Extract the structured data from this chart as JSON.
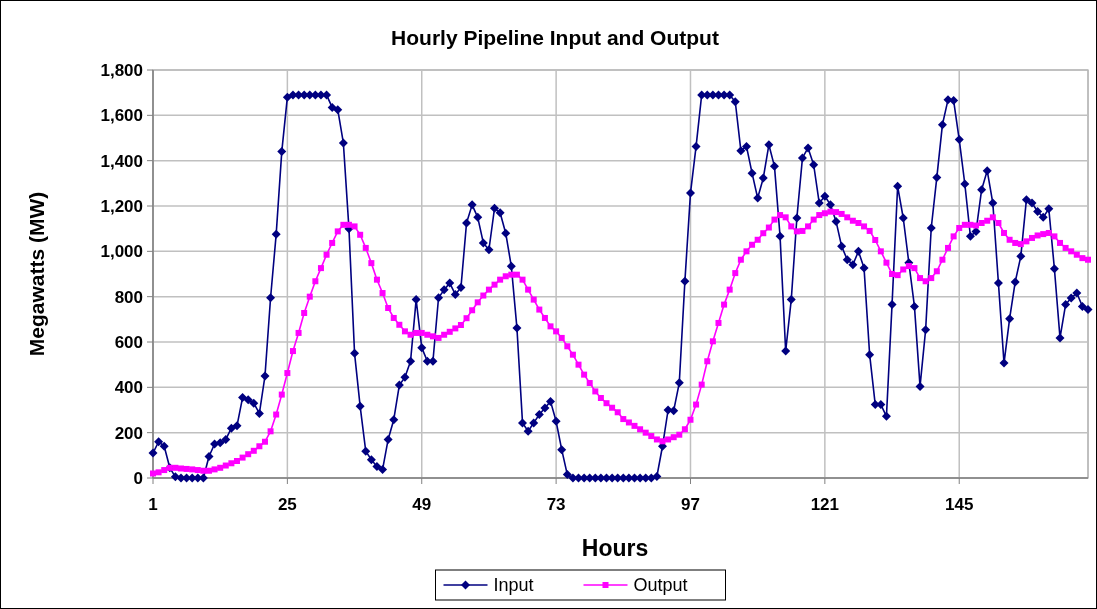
{
  "chart_data": {
    "type": "line",
    "title": "Hourly Pipeline Input and Output",
    "xlabel": "Hours",
    "ylabel": "Megawatts (MW)",
    "x": [
      1,
      2,
      3,
      4,
      5,
      6,
      7,
      8,
      9,
      10,
      11,
      12,
      13,
      14,
      15,
      16,
      17,
      18,
      19,
      20,
      21,
      22,
      23,
      24,
      25,
      26,
      27,
      28,
      29,
      30,
      31,
      32,
      33,
      34,
      35,
      36,
      37,
      38,
      39,
      40,
      41,
      42,
      43,
      44,
      45,
      46,
      47,
      48,
      49,
      50,
      51,
      52,
      53,
      54,
      55,
      56,
      57,
      58,
      59,
      60,
      61,
      62,
      63,
      64,
      65,
      66,
      67,
      68,
      69,
      70,
      71,
      72,
      73,
      74,
      75,
      76,
      77,
      78,
      79,
      80,
      81,
      82,
      83,
      84,
      85,
      86,
      87,
      88,
      89,
      90,
      91,
      92,
      93,
      94,
      95,
      96,
      97,
      98,
      99,
      100,
      101,
      102,
      103,
      104,
      105,
      106,
      107,
      108,
      109,
      110,
      111,
      112,
      113,
      114,
      115,
      116,
      117,
      118,
      119,
      120,
      121,
      122,
      123,
      124,
      125,
      126,
      127,
      128,
      129,
      130,
      131,
      132,
      133,
      134,
      135,
      136,
      137,
      138,
      139,
      140,
      141,
      142,
      143,
      144,
      145,
      146,
      147,
      148,
      149,
      150,
      151,
      152,
      153,
      154,
      155,
      156,
      157,
      158,
      159,
      160,
      161,
      162,
      163,
      164,
      165,
      166,
      167,
      168
    ],
    "series": [
      {
        "name": "Input",
        "color": "#000080",
        "marker": "diamond",
        "values": [
          110,
          160,
          140,
          45,
          5,
          0,
          0,
          0,
          0,
          0,
          95,
          150,
          155,
          170,
          220,
          230,
          355,
          345,
          330,
          285,
          450,
          795,
          1075,
          1440,
          1680,
          1690,
          1690,
          1690,
          1690,
          1690,
          1690,
          1690,
          1635,
          1625,
          1478,
          1100,
          550,
          316,
          118,
          81,
          51,
          37,
          170,
          257,
          410,
          444,
          515,
          787,
          575,
          515,
          515,
          795,
          830,
          860,
          810,
          840,
          1125,
          1205,
          1150,
          1037,
          1007,
          1190,
          1170,
          1080,
          934,
          662,
          243,
          206,
          243,
          280,
          309,
          338,
          250,
          125,
          15,
          0,
          0,
          0,
          0,
          0,
          0,
          0,
          0,
          0,
          0,
          0,
          0,
          0,
          0,
          0,
          7,
          140,
          300,
          297,
          420,
          868,
          1257,
          1463,
          1690,
          1690,
          1690,
          1690,
          1690,
          1690,
          1660,
          1444,
          1463,
          1345,
          1235,
          1323,
          1470,
          1375,
          1066,
          560,
          787,
          1147,
          1412,
          1456,
          1382,
          1213,
          1243,
          1206,
          1132,
          1022,
          963,
          941,
          1000,
          926,
          544,
          324,
          324,
          272,
          765,
          1287,
          1147,
          950,
          757,
          404,
          654,
          1103,
          1326,
          1559,
          1669,
          1665,
          1493,
          1297,
          1066,
          1088,
          1272,
          1356,
          1213,
          860,
          507,
          703,
          865,
          978,
          1228,
          1213,
          1176,
          1150,
          1188,
          923,
          618,
          765,
          794,
          816,
          757,
          743
        ]
      },
      {
        "name": "Output",
        "color": "#ff00ff",
        "marker": "square",
        "values": [
          20,
          25,
          35,
          45,
          45,
          42,
          40,
          38,
          35,
          32,
          32,
          38,
          45,
          55,
          65,
          75,
          90,
          105,
          120,
          140,
          160,
          206,
          280,
          368,
          463,
          560,
          640,
          728,
          800,
          868,
          926,
          985,
          1037,
          1088,
          1117,
          1117,
          1110,
          1073,
          1015,
          948,
          875,
          816,
          750,
          706,
          676,
          647,
          632,
          640,
          640,
          632,
          625,
          618,
          632,
          645,
          660,
          675,
          705,
          740,
          775,
          805,
          831,
          853,
          875,
          890,
          897,
          897,
          875,
          831,
          787,
          743,
          706,
          669,
          647,
          618,
          581,
          544,
          500,
          456,
          419,
          382,
          353,
          330,
          310,
          290,
          260,
          245,
          230,
          215,
          200,
          185,
          170,
          162,
          170,
          180,
          191,
          215,
          257,
          324,
          412,
          515,
          603,
          684,
          765,
          831,
          904,
          963,
          1000,
          1029,
          1051,
          1080,
          1105,
          1140,
          1160,
          1150,
          1110,
          1088,
          1090,
          1110,
          1140,
          1160,
          1168,
          1175,
          1173,
          1165,
          1150,
          1135,
          1125,
          1110,
          1090,
          1050,
          1000,
          950,
          900,
          895,
          920,
          935,
          926,
          882,
          868,
          882,
          912,
          963,
          1015,
          1066,
          1103,
          1117,
          1117,
          1114,
          1125,
          1135,
          1150,
          1125,
          1081,
          1051,
          1037,
          1032,
          1044,
          1059,
          1070,
          1076,
          1081,
          1066,
          1037,
          1015,
          1000,
          985,
          970,
          963
        ]
      }
    ],
    "xlim": [
      1,
      168
    ],
    "xticks": [
      1,
      25,
      49,
      73,
      97,
      121,
      145
    ],
    "ylim": [
      0,
      1800
    ],
    "yticks": [
      0,
      {
        "value": 200,
        "label": "200"
      },
      {
        "value": 400,
        "label": "400"
      },
      {
        "value": 600,
        "label": "600"
      },
      {
        "value": 800,
        "label": "800"
      },
      {
        "value": 1000,
        "label": "1,000"
      },
      {
        "value": 1200,
        "label": "1,200"
      },
      {
        "value": 1400,
        "label": "1,400"
      },
      {
        "value": 1600,
        "label": "1,600"
      },
      {
        "value": 1800,
        "label": "1,800"
      }
    ],
    "grid": true,
    "legend": "bottom",
    "line_style": "solid"
  }
}
